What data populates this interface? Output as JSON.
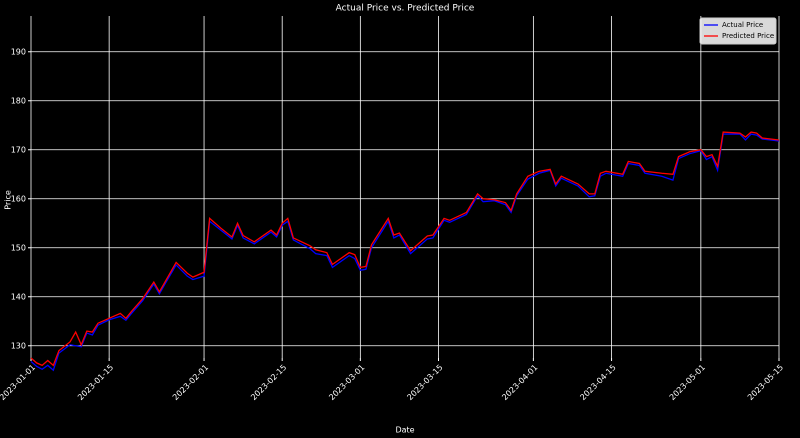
{
  "chart_data": {
    "type": "line",
    "title": "Actual Price vs. Predicted Price",
    "xlabel": "Date",
    "ylabel": "Price",
    "x": [
      "2023-01-01",
      "2023-01-02",
      "2023-01-03",
      "2023-01-04",
      "2023-01-05",
      "2023-01-06",
      "2023-01-08",
      "2023-01-09",
      "2023-01-10",
      "2023-01-11",
      "2023-01-12",
      "2023-01-13",
      "2023-01-15",
      "2023-01-17",
      "2023-01-18",
      "2023-01-19",
      "2023-01-21",
      "2023-01-23",
      "2023-01-24",
      "2023-01-25",
      "2023-01-27",
      "2023-01-29",
      "2023-01-30",
      "2023-02-01",
      "2023-02-02",
      "2023-02-04",
      "2023-02-06",
      "2023-02-07",
      "2023-02-08",
      "2023-02-10",
      "2023-02-13",
      "2023-02-14",
      "2023-02-15",
      "2023-02-16",
      "2023-02-17",
      "2023-02-20",
      "2023-02-21",
      "2023-02-23",
      "2023-02-24",
      "2023-02-27",
      "2023-02-28",
      "2023-03-01",
      "2023-03-02",
      "2023-03-03",
      "2023-03-06",
      "2023-03-07",
      "2023-03-08",
      "2023-03-10",
      "2023-03-11",
      "2023-03-13",
      "2023-03-14",
      "2023-03-16",
      "2023-03-17",
      "2023-03-20",
      "2023-03-22",
      "2023-03-23",
      "2023-03-25",
      "2023-03-27",
      "2023-03-28",
      "2023-03-29",
      "2023-03-31",
      "2023-04-02",
      "2023-04-04",
      "2023-04-05",
      "2023-04-06",
      "2023-04-09",
      "2023-04-11",
      "2023-04-12",
      "2023-04-13",
      "2023-04-14",
      "2023-04-17",
      "2023-04-18",
      "2023-04-20",
      "2023-04-21",
      "2023-04-24",
      "2023-04-26",
      "2023-04-27",
      "2023-04-29",
      "2023-05-01",
      "2023-05-02",
      "2023-05-03",
      "2023-05-04",
      "2023-05-05",
      "2023-05-08",
      "2023-05-09",
      "2023-05-10",
      "2023-05-11",
      "2023-05-12",
      "2023-05-15"
    ],
    "series": [
      {
        "name": "Actual Price",
        "color": "#0000ff",
        "values": [
          126.8,
          125.8,
          125.2,
          126.0,
          125.0,
          128.5,
          130.2,
          130.0,
          129.8,
          132.6,
          132.2,
          134.2,
          135.3,
          136.0,
          135.2,
          136.6,
          139.2,
          142.6,
          140.6,
          142.6,
          146.5,
          144.2,
          143.5,
          144.2,
          155.4,
          153.6,
          151.8,
          154.6,
          152.0,
          150.8,
          153.2,
          152.2,
          154.6,
          155.4,
          151.6,
          149.8,
          148.8,
          148.4,
          146.0,
          148.4,
          147.8,
          145.4,
          145.6,
          150.0,
          155.4,
          152.0,
          152.6,
          148.8,
          149.8,
          151.8,
          152.0,
          155.6,
          155.2,
          156.8,
          160.6,
          159.4,
          159.6,
          158.8,
          157.2,
          160.6,
          164.0,
          165.2,
          165.8,
          162.6,
          164.2,
          162.6,
          160.4,
          160.6,
          164.6,
          165.2,
          164.6,
          167.2,
          166.8,
          165.2,
          164.6,
          163.8,
          168.2,
          169.2,
          169.8,
          168.0,
          168.6,
          165.8,
          173.2,
          173.2,
          172.0,
          173.2,
          173.0,
          172.2,
          171.8
        ]
      },
      {
        "name": "Predicted Price",
        "color": "#ff0000",
        "values": [
          127.5,
          126.5,
          126.0,
          127.0,
          126.0,
          129.0,
          130.8,
          132.8,
          130.2,
          133.0,
          132.8,
          134.6,
          135.6,
          136.6,
          135.6,
          137.0,
          139.6,
          143.0,
          141.0,
          143.0,
          147.0,
          144.8,
          144.0,
          145.0,
          156.0,
          154.0,
          152.2,
          155.0,
          152.5,
          151.2,
          153.6,
          152.6,
          155.0,
          156.0,
          152.0,
          150.4,
          149.6,
          149.0,
          146.6,
          149.0,
          148.6,
          146.0,
          146.2,
          150.6,
          156.0,
          152.6,
          153.0,
          149.4,
          150.4,
          152.4,
          152.6,
          156.0,
          155.6,
          157.2,
          161.0,
          160.0,
          159.8,
          159.2,
          157.6,
          161.0,
          164.6,
          165.6,
          166.0,
          163.0,
          164.6,
          163.0,
          161.0,
          161.0,
          165.2,
          165.6,
          165.0,
          167.6,
          167.2,
          165.6,
          165.2,
          165.0,
          168.6,
          169.6,
          170.0,
          168.6,
          169.0,
          166.6,
          173.6,
          173.4,
          172.6,
          173.6,
          173.4,
          172.4,
          172.0
        ]
      }
    ],
    "xlim": [
      "2023-01-01",
      "2023-05-15"
    ],
    "xticks": [
      "2023-01-01",
      "2023-01-15",
      "2023-02-01",
      "2023-02-15",
      "2023-03-01",
      "2023-03-15",
      "2023-04-01",
      "2023-04-15",
      "2023-05-01",
      "2023-05-15"
    ],
    "ylim": [
      127.5,
      197.3
    ],
    "yticks": [
      130,
      140,
      150,
      160,
      170,
      180,
      190
    ],
    "grid": true,
    "legend": "upper right"
  }
}
